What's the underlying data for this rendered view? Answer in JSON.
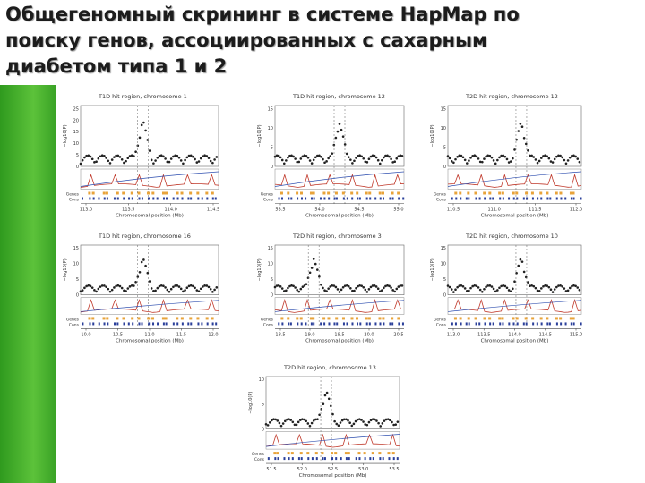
{
  "header": {
    "title_lines": [
      "Общегеномный скрининг в системе HapMap по",
      "поиску генов, ассоциированных с сахарным",
      "диабетом типа 1 и 2"
    ]
  },
  "figure": {
    "x_label": "Chromosomal position (Mb)",
    "y_label": "−log10(P)",
    "genes_label": "Genes",
    "cons_label": "Cons",
    "panels": [
      {
        "title": "T1D hit region, chromosome 1",
        "x_ticks": [
          "113.0",
          "113.5",
          "114.0",
          "114.5"
        ],
        "y_ticks": [
          "0",
          "5",
          "10",
          "15",
          "20",
          "25"
        ]
      },
      {
        "title": "T1D hit region, chromosome 12",
        "x_ticks": [
          "53.5",
          "54.0",
          "54.5",
          "55.0"
        ],
        "y_ticks": [
          "0",
          "5",
          "10",
          "15"
        ]
      },
      {
        "title": "T2D hit region, chromosome 12",
        "x_ticks": [
          "110.5",
          "111.0",
          "111.5",
          "112.0"
        ],
        "y_ticks": [
          "0",
          "5",
          "10",
          "15"
        ]
      },
      {
        "title": "T1D hit region, chromosome 16",
        "x_ticks": [
          "10.0",
          "10.5",
          "11.0",
          "11.5",
          "12.0"
        ],
        "y_ticks": [
          "0",
          "5",
          "10",
          "15"
        ]
      },
      {
        "title": "T2D hit region, chromosome 3",
        "x_ticks": [
          "18.5",
          "19.0",
          "19.5",
          "20.0",
          "20.5"
        ],
        "y_ticks": [
          "0",
          "5",
          "10",
          "15"
        ]
      },
      {
        "title": "T2D hit region, chromosome 10",
        "x_ticks": [
          "113.0",
          "113.5",
          "114.0",
          "114.5",
          "115.0"
        ],
        "y_ticks": [
          "0",
          "5",
          "10",
          "15"
        ]
      },
      {
        "title": "T2D hit region, chromosome 13",
        "x_ticks": [
          "51.5",
          "52.0",
          "52.5",
          "53.0",
          "53.5"
        ],
        "y_ticks": [
          "0",
          "5",
          "10"
        ]
      }
    ]
  }
}
